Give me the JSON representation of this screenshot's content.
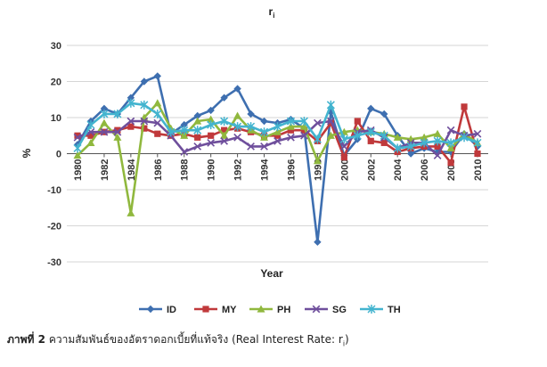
{
  "chart_data": {
    "type": "line",
    "title": "r",
    "title_subscript": "i",
    "xlabel": "Year",
    "ylabel": "%",
    "ylim": [
      -30,
      30
    ],
    "yticks": [
      -30,
      -20,
      -10,
      0,
      10,
      20,
      30
    ],
    "x": [
      1980,
      1981,
      1982,
      1983,
      1984,
      1985,
      1986,
      1987,
      1988,
      1989,
      1990,
      1991,
      1992,
      1993,
      1994,
      1995,
      1996,
      1997,
      1998,
      1999,
      2000,
      2001,
      2002,
      2003,
      2004,
      2005,
      2006,
      2007,
      2008,
      2009,
      2010
    ],
    "xticks": [
      1980,
      1982,
      1984,
      1986,
      1988,
      1990,
      1992,
      1994,
      1996,
      1998,
      2000,
      2002,
      2004,
      2006,
      2008,
      2010
    ],
    "grid": "horizontal",
    "legend": "bottom",
    "series": [
      {
        "name": "ID",
        "color": "#3e6fb0",
        "marker": "diamond",
        "values": [
          2.5,
          9,
          12.5,
          11,
          15.5,
          20,
          21.5,
          5.5,
          8,
          10.5,
          12,
          15.5,
          18,
          11,
          9,
          8.5,
          9.5,
          7,
          -24.5,
          11.5,
          -0.5,
          4,
          12.5,
          11,
          5,
          0,
          1.5,
          0.5,
          0.5,
          5.5,
          2
        ]
      },
      {
        "name": "MY",
        "color": "#c0393b",
        "marker": "square",
        "values": [
          5,
          5,
          6,
          6.5,
          7.5,
          7,
          5.5,
          5,
          5.5,
          4.5,
          5,
          6.5,
          7,
          6,
          5,
          5,
          6.5,
          6.5,
          3.5,
          8.5,
          -1,
          9,
          3.5,
          3,
          0.5,
          1.5,
          2,
          2,
          -2.5,
          13,
          0
        ]
      },
      {
        "name": "PH",
        "color": "#90b83e",
        "marker": "triangle",
        "values": [
          -0.5,
          3,
          8.5,
          4.5,
          -16.5,
          10,
          14,
          7,
          5,
          9,
          9.5,
          5,
          10.5,
          6.5,
          4.5,
          6,
          7.5,
          7.5,
          -2,
          5,
          6,
          6.5,
          6,
          5.5,
          4.5,
          4,
          4.5,
          5.5,
          1.5,
          5.5,
          3
        ]
      },
      {
        "name": "SG",
        "color": "#6f4f9c",
        "marker": "x",
        "values": [
          4.5,
          6,
          6,
          6,
          9,
          9,
          8.5,
          5,
          0.5,
          2,
          3,
          3.5,
          4.5,
          2,
          2,
          3.5,
          4.5,
          5,
          8.5,
          9,
          2,
          6,
          6.5,
          4.5,
          1.5,
          3,
          3,
          -0.5,
          6.5,
          5,
          5.5
        ]
      },
      {
        "name": "TH",
        "color": "#43b4cf",
        "marker": "asterisk",
        "values": [
          1.5,
          8,
          11,
          11,
          14,
          13.5,
          11,
          6,
          6.5,
          6.5,
          8,
          9,
          7.5,
          7.5,
          6,
          7.5,
          9,
          9,
          4,
          13.5,
          4,
          5,
          6,
          5,
          1.5,
          2,
          3,
          3.5,
          3,
          4.5,
          3
        ]
      }
    ]
  },
  "caption": {
    "label": "ภาพที่ 2",
    "text": " ความสัมพันธ์ของอัตราดอกเบี้ยที่แท้จริง (Real Interest Rate: r",
    "subscript": "i",
    "close": ")"
  }
}
